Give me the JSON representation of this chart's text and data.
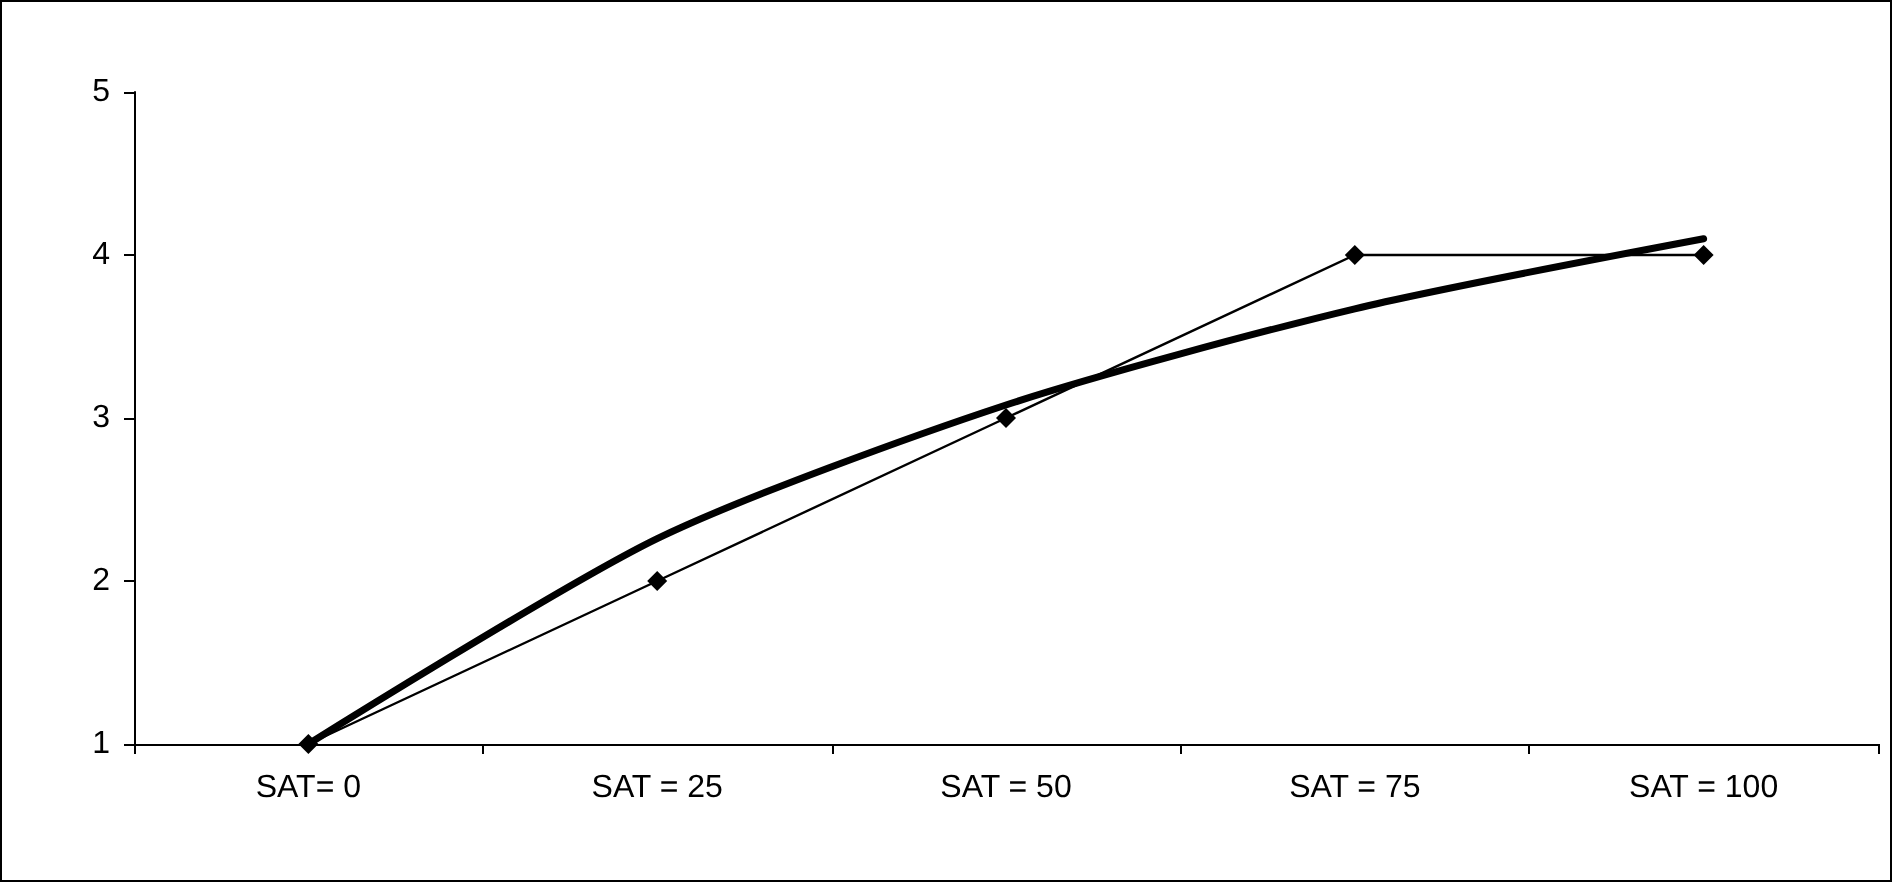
{
  "chart_data": {
    "type": "line",
    "categories": [
      "SAT= 0",
      "SAT = 25",
      "SAT = 50",
      "SAT = 75",
      "SAT = 100"
    ],
    "series": [
      {
        "color": "#000000",
        "values": [
          1,
          2,
          3,
          4,
          4
        ],
        "marker": "diamond"
      },
      {
        "color": "#000000",
        "values": [
          1,
          2.26,
          3.08,
          3.67,
          4.1
        ],
        "marker": "none"
      }
    ],
    "ylim": [
      1,
      5
    ],
    "yticks": [
      1,
      2,
      3,
      4,
      5
    ],
    "grid": false
  }
}
